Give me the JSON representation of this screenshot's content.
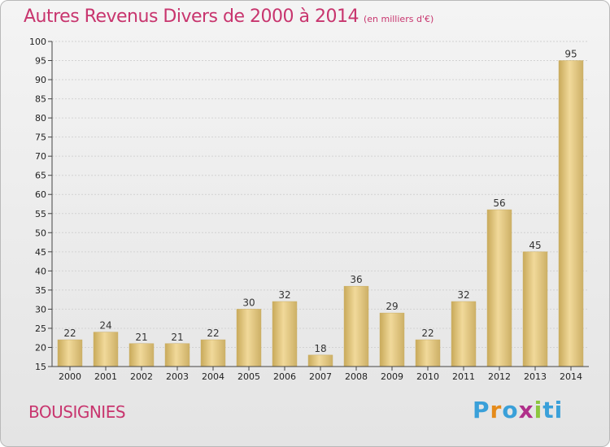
{
  "chart_data": {
    "type": "bar",
    "title": "Autres Revenus Divers de 2000 à 2014",
    "unit": "(en milliers d'€)",
    "categories": [
      "2000",
      "2001",
      "2002",
      "2003",
      "2004",
      "2005",
      "2006",
      "2007",
      "2008",
      "2009",
      "2010",
      "2011",
      "2012",
      "2013",
      "2014"
    ],
    "values": [
      22,
      24,
      21,
      21,
      22,
      30,
      32,
      18,
      36,
      29,
      22,
      32,
      56,
      45,
      95
    ],
    "ylim": [
      15,
      100
    ],
    "yticks": [
      15,
      20,
      25,
      30,
      35,
      40,
      45,
      50,
      55,
      60,
      65,
      70,
      75,
      80,
      85,
      90,
      95,
      100
    ],
    "grid": true,
    "bar_color": "#e6c878"
  },
  "commune": "BOUSIGNIES",
  "logo": {
    "p1": "P",
    "p2": "r",
    "p3": "o",
    "p4": "x",
    "p5": "i",
    "p6": "ti"
  }
}
